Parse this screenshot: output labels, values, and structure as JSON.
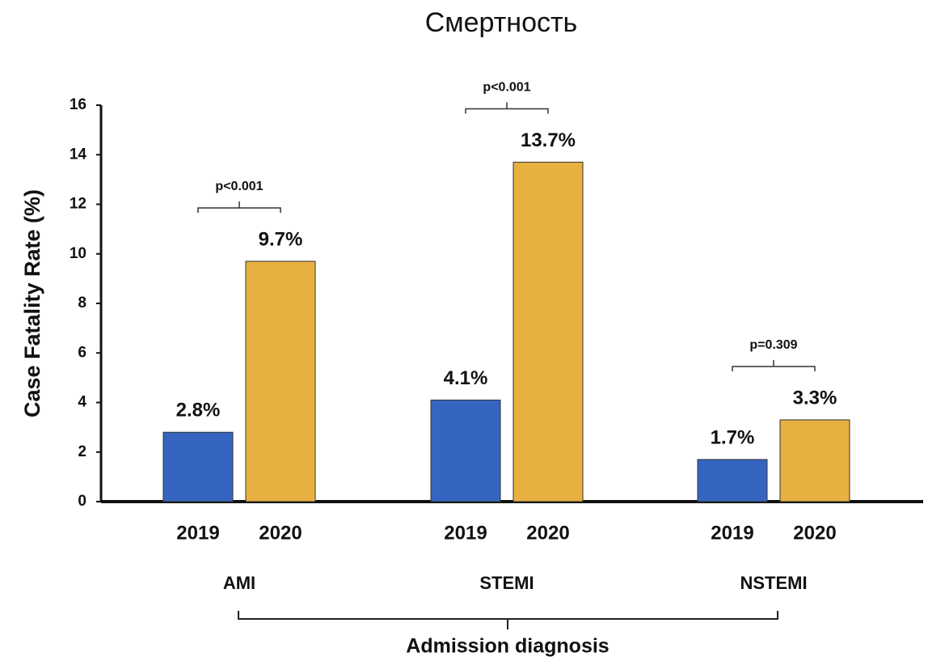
{
  "chart_data": {
    "type": "bar",
    "title": "Смертность",
    "y_label": "Case Fatality Rate (%)",
    "x_label": "Admission diagnosis",
    "categories": [
      "AMI",
      "STEMI",
      "NSTEMI"
    ],
    "series": [
      {
        "name": "2019",
        "color": "#3565c0",
        "values": [
          2.8,
          4.1,
          1.7
        ],
        "value_labels": [
          "2.8%",
          "4.1%",
          "1.7%"
        ]
      },
      {
        "name": "2020",
        "color": "#e8b040",
        "values": [
          9.7,
          13.7,
          3.3
        ],
        "value_labels": [
          "9.7%",
          "13.7%",
          "3.3%"
        ]
      }
    ],
    "annotations": [
      "p<0.001",
      "p<0.001",
      "p=0.309"
    ],
    "ylim": [
      0,
      16
    ],
    "yticks": [
      0,
      2,
      4,
      6,
      8,
      10,
      12,
      14,
      16
    ],
    "grid": false
  }
}
